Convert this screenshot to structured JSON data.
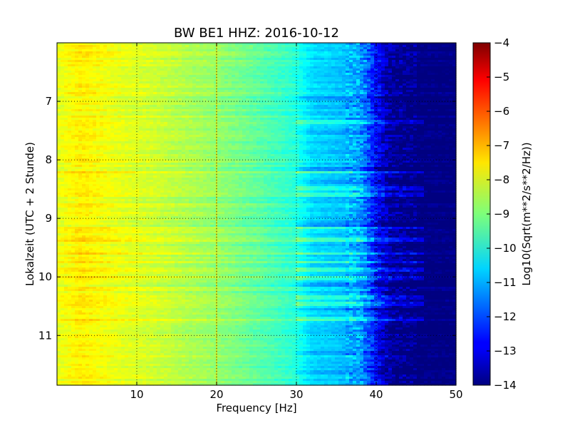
{
  "chart_data": {
    "type": "heatmap",
    "title": "BW BE1 HHZ: 2016-10-12",
    "xlabel": "Frequency [Hz]",
    "ylabel": "Lokalzeit (UTC + 2 Stunde)",
    "xlim": [
      0,
      50
    ],
    "ylim": [
      6.0,
      11.85
    ],
    "y_inverted": true,
    "x_ticks": [
      10,
      20,
      30,
      40,
      50
    ],
    "y_ticks": [
      7,
      8,
      9,
      10,
      11
    ],
    "grid": true,
    "colorbar": {
      "label": "Log10(Sqrt(m**2/s**2/Hz))",
      "range": [
        -14,
        -4
      ],
      "ticks": [
        -4,
        -5,
        -6,
        -7,
        -8,
        -9,
        -10,
        -11,
        -12,
        -13,
        -14
      ],
      "colormap": "jet"
    },
    "profile": {
      "frequency_hz": [
        0,
        3,
        8,
        12,
        20,
        25,
        30,
        32,
        35,
        38,
        40,
        42,
        45,
        50
      ],
      "log10_amplitude": [
        -8.0,
        -7.6,
        -8.0,
        -8.2,
        -8.8,
        -9.3,
        -9.9,
        -10.6,
        -10.8,
        -11.1,
        -12.7,
        -13.8,
        -14.0,
        -14.0
      ]
    },
    "bright_bands_local_time": [
      7.35,
      8.2,
      8.5,
      8.6,
      9.15,
      9.35,
      9.6,
      9.75,
      9.88,
      10.02,
      10.35,
      10.45,
      10.72
    ],
    "dark_bands_local_time": [
      6.95,
      7.55,
      8.15,
      8.38,
      9.1,
      10.12,
      10.55,
      11.3,
      11.62
    ]
  }
}
